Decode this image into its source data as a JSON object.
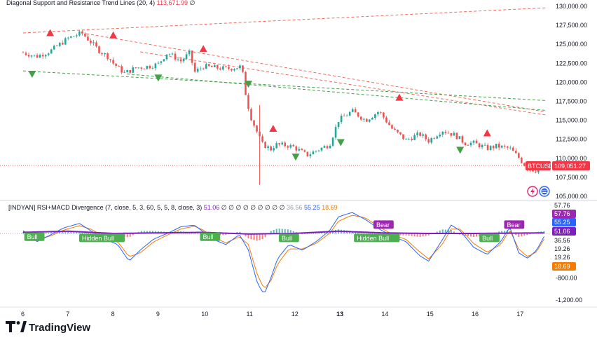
{
  "colors": {
    "up": "#26a69a",
    "down": "#ef5350",
    "resistance": "#f4695a",
    "support": "#43a047",
    "macd_blue": "#2962ff",
    "signal_orange": "#f57c00",
    "rsi_purple": "#7e1fbd",
    "lower_grey": "#9aa0a6",
    "price_tag": "#f23645",
    "bull_tag": "#4caf50",
    "bear_tag": "#9c27b0"
  },
  "chart_data": [
    {
      "type": "candlestick",
      "title": "Diagonal Support and Resistance Trend Lines (20, 4)",
      "title_value": "113,671.99",
      "title_suffix": "∅",
      "symbol": "BTCUSD",
      "last_price": "109,051.27",
      "x_ticks": [
        "6",
        "7",
        "8",
        "9",
        "10",
        "11",
        "12",
        "13",
        "14",
        "15",
        "16",
        "17"
      ],
      "y_ticks": [
        "130,000.00",
        "127,500.00",
        "125,000.00",
        "122,500.00",
        "120,000.00",
        "117,500.00",
        "115,000.00",
        "112,500.00",
        "110,000.00",
        "107,500.00",
        "105,000.00"
      ],
      "ylim": [
        105000,
        130000
      ],
      "close_path": [
        [
          0,
          123900
        ],
        [
          0.3,
          123400
        ],
        [
          0.6,
          124100
        ],
        [
          1.0,
          125800
        ],
        [
          1.3,
          126500
        ],
        [
          1.7,
          124100
        ],
        [
          1.9,
          123300
        ],
        [
          2.0,
          122500
        ],
        [
          2.25,
          121200
        ],
        [
          2.5,
          121900
        ],
        [
          2.8,
          122100
        ],
        [
          3.0,
          122400
        ],
        [
          3.2,
          123900
        ],
        [
          3.5,
          122800
        ],
        [
          3.7,
          123900
        ],
        [
          3.8,
          121300
        ],
        [
          4.0,
          122100
        ],
        [
          4.3,
          121900
        ],
        [
          4.5,
          121800
        ],
        [
          4.7,
          121900
        ],
        [
          4.85,
          122100
        ],
        [
          4.95,
          118000
        ],
        [
          5.05,
          115500
        ],
        [
          5.3,
          111900
        ],
        [
          5.5,
          111200
        ],
        [
          5.6,
          111800
        ],
        [
          5.85,
          111700
        ],
        [
          6.0,
          111500
        ],
        [
          6.3,
          110400
        ],
        [
          6.5,
          111000
        ],
        [
          6.8,
          111800
        ],
        [
          7.0,
          115000
        ],
        [
          7.3,
          116200
        ],
        [
          7.6,
          115000
        ],
        [
          7.9,
          116200
        ],
        [
          8.2,
          113800
        ],
        [
          8.5,
          112400
        ],
        [
          8.8,
          113200
        ],
        [
          9.0,
          112300
        ],
        [
          9.3,
          113700
        ],
        [
          9.6,
          113000
        ],
        [
          9.8,
          112000
        ],
        [
          10.0,
          112000
        ],
        [
          10.3,
          111300
        ],
        [
          10.5,
          111600
        ],
        [
          10.8,
          111300
        ],
        [
          11.0,
          110100
        ],
        [
          11.2,
          108600
        ],
        [
          11.4,
          108400
        ],
        [
          11.6,
          109100
        ]
      ],
      "resistance_lines": [
        {
          "from": [
            0,
            126500
          ],
          "to": [
            11.6,
            129800
          ]
        },
        {
          "from": [
            1.4,
            126400
          ],
          "to": [
            11.6,
            116100
          ]
        },
        {
          "from": [
            2.6,
            124000
          ],
          "to": [
            11.6,
            115700
          ]
        }
      ],
      "support_lines": [
        {
          "from": [
            0,
            121500
          ],
          "to": [
            11.6,
            117600
          ]
        },
        {
          "from": [
            2.3,
            121100
          ],
          "to": [
            11.6,
            116300
          ]
        }
      ],
      "signals": [
        {
          "x": 0.6,
          "price": 126500,
          "type": "resistance"
        },
        {
          "x": 2.0,
          "price": 126200,
          "type": "resistance"
        },
        {
          "x": 4.0,
          "price": 124400,
          "type": "resistance"
        },
        {
          "x": 5.55,
          "price": 113900,
          "type": "resistance"
        },
        {
          "x": 8.35,
          "price": 118000,
          "type": "resistance"
        },
        {
          "x": 10.3,
          "price": 113300,
          "type": "resistance"
        },
        {
          "x": 0.2,
          "price": 121100,
          "type": "support"
        },
        {
          "x": 3.0,
          "price": 120600,
          "type": "support"
        },
        {
          "x": 5.0,
          "price": 119800,
          "type": "support"
        },
        {
          "x": 6.05,
          "price": 110200,
          "type": "support"
        },
        {
          "x": 7.05,
          "price": 112100,
          "type": "support"
        },
        {
          "x": 9.7,
          "price": 111100,
          "type": "support"
        }
      ],
      "wick": {
        "x": 5.25,
        "low": 106500
      }
    },
    {
      "type": "line",
      "title": "[INDYAN] RSI+MACD Divergence (7, close, 5, 3, 60, 5, 5, 8, close, 3)",
      "values_text": [
        "51.06",
        "∅",
        "∅",
        "∅",
        "∅",
        "∅",
        "∅",
        "∅",
        "∅",
        "∅",
        "36.56",
        "55.25",
        "18.69"
      ],
      "y_ticks": [
        "-800.00",
        "-1,200.00"
      ],
      "value_tags": [
        {
          "label": "57.76",
          "color": "#ffffff",
          "fg": "#131722"
        },
        {
          "label": "57.76",
          "color": "#9c27b0",
          "fg": "#ffffff"
        },
        {
          "label": "55.25",
          "color": "#2962ff",
          "fg": "#ffffff"
        },
        {
          "label": "51.06",
          "color": "#7e1fbd",
          "fg": "#ffffff"
        },
        {
          "label": "36.56",
          "color": "#ffffff",
          "fg": "#131722"
        },
        {
          "label": "19.26",
          "color": "#ffffff",
          "fg": "#131722"
        },
        {
          "label": "19.26",
          "color": "#ffffff",
          "fg": "#131722"
        },
        {
          "label": "18.69",
          "color": "#f57c00",
          "fg": "#ffffff"
        }
      ],
      "ylim": [
        -1300,
        600
      ],
      "macd_path": [
        [
          0,
          50
        ],
        [
          0.3,
          -150
        ],
        [
          0.6,
          -30
        ],
        [
          0.9,
          100
        ],
        [
          1.25,
          180
        ],
        [
          1.5,
          50
        ],
        [
          1.8,
          -100
        ],
        [
          2.1,
          -200
        ],
        [
          2.35,
          -500
        ],
        [
          2.6,
          -300
        ],
        [
          2.9,
          -100
        ],
        [
          3.2,
          0
        ],
        [
          3.5,
          120
        ],
        [
          3.8,
          150
        ],
        [
          4.0,
          30
        ],
        [
          4.2,
          -100
        ],
        [
          4.5,
          -200
        ],
        [
          4.8,
          -20
        ],
        [
          5.0,
          -300
        ],
        [
          5.2,
          -900
        ],
        [
          5.35,
          -1100
        ],
        [
          5.5,
          -800
        ],
        [
          5.65,
          -450
        ],
        [
          5.9,
          -200
        ],
        [
          6.2,
          -300
        ],
        [
          6.5,
          -150
        ],
        [
          6.8,
          50
        ],
        [
          7.0,
          300
        ],
        [
          7.3,
          380
        ],
        [
          7.6,
          250
        ],
        [
          7.9,
          80
        ],
        [
          8.2,
          -50
        ],
        [
          8.5,
          -150
        ],
        [
          8.8,
          -400
        ],
        [
          9.0,
          -500
        ],
        [
          9.3,
          -120
        ],
        [
          9.5,
          150
        ],
        [
          9.7,
          50
        ],
        [
          10.0,
          -250
        ],
        [
          10.3,
          -380
        ],
        [
          10.6,
          -150
        ],
        [
          10.8,
          120
        ],
        [
          11.0,
          -350
        ],
        [
          11.2,
          -450
        ],
        [
          11.4,
          -300
        ],
        [
          11.6,
          0
        ]
      ],
      "signal_path": [
        [
          0,
          30
        ],
        [
          0.3,
          -100
        ],
        [
          0.6,
          -50
        ],
        [
          0.9,
          60
        ],
        [
          1.25,
          140
        ],
        [
          1.5,
          80
        ],
        [
          1.8,
          -60
        ],
        [
          2.1,
          -150
        ],
        [
          2.35,
          -420
        ],
        [
          2.6,
          -350
        ],
        [
          2.9,
          -150
        ],
        [
          3.2,
          -30
        ],
        [
          3.5,
          80
        ],
        [
          3.8,
          130
        ],
        [
          4.0,
          60
        ],
        [
          4.2,
          -60
        ],
        [
          4.5,
          -170
        ],
        [
          4.8,
          -60
        ],
        [
          5.0,
          -200
        ],
        [
          5.2,
          -750
        ],
        [
          5.35,
          -1000
        ],
        [
          5.5,
          -850
        ],
        [
          5.65,
          -550
        ],
        [
          5.9,
          -280
        ],
        [
          6.2,
          -280
        ],
        [
          6.5,
          -180
        ],
        [
          6.8,
          0
        ],
        [
          7.0,
          220
        ],
        [
          7.3,
          330
        ],
        [
          7.6,
          280
        ],
        [
          7.9,
          120
        ],
        [
          8.2,
          -20
        ],
        [
          8.5,
          -110
        ],
        [
          8.8,
          -330
        ],
        [
          9.0,
          -460
        ],
        [
          9.3,
          -200
        ],
        [
          9.5,
          80
        ],
        [
          9.7,
          80
        ],
        [
          10.0,
          -180
        ],
        [
          10.3,
          -340
        ],
        [
          10.6,
          -200
        ],
        [
          10.8,
          60
        ],
        [
          11.0,
          -280
        ],
        [
          11.2,
          -420
        ],
        [
          11.4,
          -330
        ],
        [
          11.6,
          -50
        ]
      ],
      "rsi_path": [
        [
          0,
          20
        ],
        [
          1.0,
          40
        ],
        [
          2.0,
          0
        ],
        [
          3.0,
          10
        ],
        [
          4.0,
          20
        ],
        [
          5.0,
          -10
        ],
        [
          6.0,
          0
        ],
        [
          7.0,
          40
        ],
        [
          8.0,
          10
        ],
        [
          9.0,
          0
        ],
        [
          10.0,
          0
        ],
        [
          11.6,
          10
        ]
      ],
      "divergence_tags": [
        {
          "x": 0.25,
          "value": -60,
          "label": "Bull",
          "type": "bull"
        },
        {
          "x": 1.75,
          "value": -80,
          "label": "Hidden Bull",
          "type": "bull"
        },
        {
          "x": 4.15,
          "value": -60,
          "label": "Bull",
          "type": "bull"
        },
        {
          "x": 5.9,
          "value": -80,
          "label": "Bull",
          "type": "bull"
        },
        {
          "x": 7.85,
          "value": -80,
          "label": "Hidden Bull",
          "type": "bull"
        },
        {
          "x": 8.0,
          "value": 160,
          "label": "Bear",
          "type": "bear"
        },
        {
          "x": 10.35,
          "value": -80,
          "label": "Bull",
          "type": "bull"
        },
        {
          "x": 10.9,
          "value": 160,
          "label": "Bear",
          "type": "bear"
        }
      ]
    }
  ],
  "watermark": {
    "brand": "TradingView"
  }
}
